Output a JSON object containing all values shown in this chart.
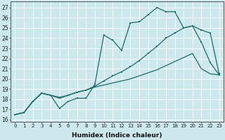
{
  "xlabel": "Humidex (Indice chaleur)",
  "background_color": "#cce8ec",
  "line_color": "#1a6b6b",
  "xlim": [
    -0.5,
    23.5
  ],
  "ylim": [
    15.8,
    27.6
  ],
  "yticks": [
    16,
    17,
    18,
    19,
    20,
    21,
    22,
    23,
    24,
    25,
    26,
    27
  ],
  "xticks": [
    0,
    1,
    2,
    3,
    4,
    5,
    6,
    7,
    8,
    9,
    10,
    11,
    12,
    13,
    14,
    15,
    16,
    17,
    18,
    19,
    20,
    21,
    22,
    23
  ],
  "line1_y": [
    16.5,
    16.7,
    17.8,
    18.6,
    18.4,
    17.1,
    17.8,
    18.1,
    18.1,
    19.5,
    24.3,
    23.8,
    22.8,
    25.5,
    25.6,
    26.3,
    27.0,
    26.6,
    26.6,
    25.0,
    25.2,
    23.6,
    21.6,
    20.4
  ],
  "line2_y": [
    16.5,
    16.7,
    17.8,
    18.6,
    18.4,
    18.1,
    18.4,
    18.7,
    18.9,
    19.3,
    19.8,
    20.3,
    20.7,
    21.2,
    21.8,
    22.5,
    23.2,
    24.0,
    24.5,
    25.0,
    25.2,
    24.8,
    24.5,
    20.5
  ],
  "line3_y": [
    16.5,
    16.7,
    17.8,
    18.6,
    18.4,
    18.2,
    18.4,
    18.7,
    18.9,
    19.2,
    19.4,
    19.6,
    19.8,
    20.0,
    20.3,
    20.6,
    20.9,
    21.3,
    21.7,
    22.1,
    22.5,
    21.0,
    20.5,
    20.4
  ]
}
